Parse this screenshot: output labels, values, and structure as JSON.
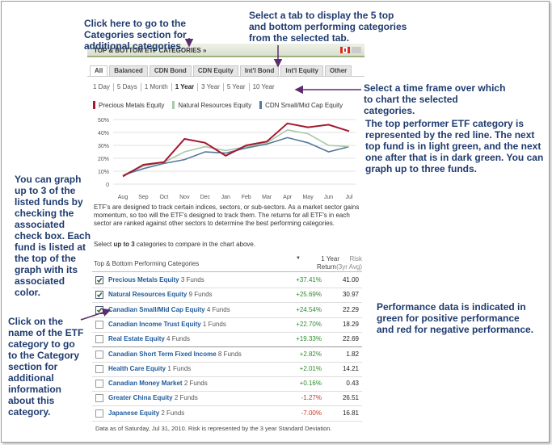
{
  "header": {
    "title": "TOP & BOTTOM ETF CATEGORIES »"
  },
  "tabs": [
    "All",
    "Balanced",
    "CDN Bond",
    "CDN Equity",
    "Int'l Bond",
    "Int'l Equity",
    "Other"
  ],
  "time_frames": [
    "1 Day",
    "5 Days",
    "1 Month",
    "1 Year",
    "3 Year",
    "5 Year",
    "10 Year"
  ],
  "chart_data": {
    "type": "line",
    "categories": [
      "Aug",
      "Sep",
      "Oct",
      "Nov",
      "Dec",
      "Jan",
      "Feb",
      "Mar",
      "Apr",
      "May",
      "Jun",
      "Jul"
    ],
    "series": [
      {
        "name": "Precious Metals Equity",
        "color": "#a3192f",
        "values": [
          6,
          15,
          17,
          35,
          32,
          22,
          30,
          33,
          47,
          44,
          46,
          41
        ]
      },
      {
        "name": "Natural Resources Equity",
        "color": "#a9c7a9",
        "values": [
          7,
          14,
          17,
          25,
          29,
          26,
          29,
          32,
          42,
          39,
          30,
          29
        ]
      },
      {
        "name": "CDN Small/Mid Cap Equity",
        "color": "#56789a",
        "values": [
          7,
          12,
          16,
          19,
          25,
          24,
          28,
          31,
          36,
          32,
          25,
          29
        ]
      }
    ],
    "ylim": [
      0,
      50
    ],
    "yticks": [
      0,
      {
        "value": 10,
        "label": "10%"
      },
      {
        "value": 20,
        "label": "20%"
      },
      {
        "value": 30,
        "label": "30%"
      },
      {
        "value": 40,
        "label": "40%"
      },
      {
        "value": 50,
        "label": "50%"
      }
    ],
    "grid": true
  },
  "description": "ETF's are designed to track certain indices, sectors, or sub-sectors. As a market sector gains momentum, so too will the ETF's designed to track them. The returns for all ETF's in each sector are ranked against other sectors to determine the best performing categories.",
  "instruction": [
    "Select ",
    "up to 3",
    " categories to compare in the chart above."
  ],
  "table": {
    "columns": [
      "Top & Bottom Performing Categories",
      "1 Year",
      "Return",
      "Risk",
      "(3yr Avg)"
    ],
    "rows": [
      {
        "checked": true,
        "name": "Precious Metals Equity",
        "funds": "3 Funds",
        "return": "+37.41%",
        "risk": "41.00"
      },
      {
        "checked": true,
        "name": "Natural Resources Equity",
        "funds": "9 Funds",
        "return": "+25.69%",
        "risk": "30.97"
      },
      {
        "checked": true,
        "name": "Canadian Small/Mid Cap Equity",
        "funds": "4 Funds",
        "return": "+24.54%",
        "risk": "22.29"
      },
      {
        "checked": false,
        "name": "Canadian Income Trust Equity",
        "funds": "1 Funds",
        "return": "+22.70%",
        "risk": "18.29"
      },
      {
        "checked": false,
        "name": "Real Estate Equity",
        "funds": "4 Funds",
        "return": "+19.33%",
        "risk": "22.69"
      },
      {
        "checked": false,
        "name": "Canadian Short Term Fixed Income",
        "funds": "8 Funds",
        "return": "+2.82%",
        "risk": "1.82"
      },
      {
        "checked": false,
        "name": "Health Care Equity",
        "funds": "1 Funds",
        "return": "+2.01%",
        "risk": "14.21"
      },
      {
        "checked": false,
        "name": "Canadian Money Market",
        "funds": "2 Funds",
        "return": "+0.16%",
        "risk": "0.43"
      },
      {
        "checked": false,
        "name": "Greater China Equity",
        "funds": "2 Funds",
        "return": "-1.27%",
        "risk": "26.51"
      },
      {
        "checked": false,
        "name": "Japanese Equity",
        "funds": "2 Funds",
        "return": "-7.00%",
        "risk": "16.81"
      }
    ]
  },
  "footer": "Data as of Saturday, Jul 31, 2010. Risk is represented by the 3 year Standard Deviation.",
  "annotations": [
    "Click here to go to the Categories section for additional categories.",
    "Select a tab to display the 5 top and bottom performing categories from the selected tab.",
    "Select a time frame over which to chart the selected categories.",
    "The top performer ETF category is represented by the red line. The next top fund is in light green, and the next one after that is in dark green. You can graph up to three funds.",
    "You can graph up to 3 of the listed funds by checking the associated check box. Each fund is listed at the top of the graph with its associated color.",
    "Click on the name of the ETF category to go to the Category section for additional information about this category.",
    "Performance data is indicated in green for positive performance and red for negative performance."
  ]
}
